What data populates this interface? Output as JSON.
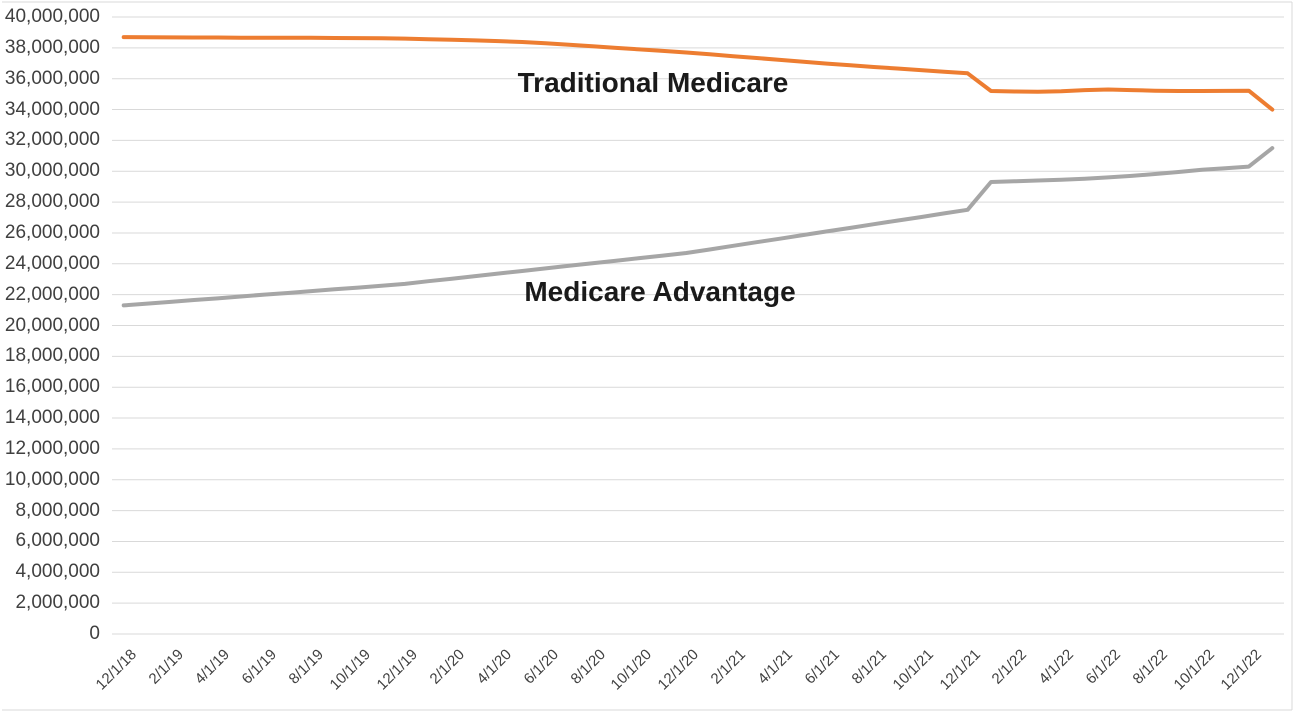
{
  "chart_data": {
    "type": "line",
    "title": "",
    "grid": true,
    "legend_position": "none (inline text labels on plot)",
    "background_color": "#ffffff",
    "gridline_color": "#d9d9d9",
    "axis_label_color": "#404040",
    "ylim": [
      0,
      40000000
    ],
    "y_tick_step": 2000000,
    "y_tick_labels": [
      "40,000,000",
      "38,000,000",
      "36,000,000",
      "34,000,000",
      "32,000,000",
      "30,000,000",
      "28,000,000",
      "26,000,000",
      "24,000,000",
      "22,000,000",
      "20,000,000",
      "18,000,000",
      "16,000,000",
      "14,000,000",
      "12,000,000",
      "10,000,000",
      "8,000,000",
      "6,000,000",
      "4,000,000",
      "2,000,000",
      "0"
    ],
    "x_tick_labels": [
      "12/1/18",
      "2/1/19",
      "4/1/19",
      "6/1/19",
      "8/1/19",
      "10/1/19",
      "12/1/19",
      "2/1/20",
      "4/1/20",
      "6/1/20",
      "8/1/20",
      "10/1/20",
      "12/1/20",
      "2/1/21",
      "4/1/21",
      "6/1/21",
      "8/1/21",
      "10/1/21",
      "12/1/21",
      "2/1/22",
      "4/1/22",
      "6/1/22",
      "8/1/22",
      "10/1/22",
      "12/1/22"
    ],
    "x": [
      "12/1/18",
      "1/1/19",
      "2/1/19",
      "3/1/19",
      "4/1/19",
      "5/1/19",
      "6/1/19",
      "7/1/19",
      "8/1/19",
      "9/1/19",
      "10/1/19",
      "11/1/19",
      "12/1/19",
      "1/1/20",
      "2/1/20",
      "3/1/20",
      "4/1/20",
      "5/1/20",
      "6/1/20",
      "7/1/20",
      "8/1/20",
      "9/1/20",
      "10/1/20",
      "11/1/20",
      "12/1/20",
      "1/1/21",
      "2/1/21",
      "3/1/21",
      "4/1/21",
      "5/1/21",
      "6/1/21",
      "7/1/21",
      "8/1/21",
      "9/1/21",
      "10/1/21",
      "11/1/21",
      "12/1/21",
      "1/1/22",
      "2/1/22",
      "3/1/22",
      "4/1/22",
      "5/1/22",
      "6/1/22",
      "7/1/22",
      "8/1/22",
      "9/1/22",
      "10/1/22",
      "11/1/22",
      "12/1/22",
      "1/1/23"
    ],
    "series": [
      {
        "name": "Traditional Medicare",
        "color": "#ED7D31",
        "values": [
          38700000,
          38690000,
          38680000,
          38670000,
          38670000,
          38660000,
          38660000,
          38650000,
          38650000,
          38640000,
          38630000,
          38620000,
          38600000,
          38560000,
          38520000,
          38480000,
          38440000,
          38380000,
          38300000,
          38200000,
          38100000,
          38000000,
          37900000,
          37800000,
          37700000,
          37580000,
          37460000,
          37340000,
          37220000,
          37100000,
          36980000,
          36870000,
          36760000,
          36660000,
          36560000,
          36450000,
          36350000,
          35200000,
          35170000,
          35150000,
          35180000,
          35260000,
          35300000,
          35260000,
          35220000,
          35200000,
          35200000,
          35210000,
          35220000,
          34000000
        ]
      },
      {
        "name": "Medicare Advantage",
        "color": "#A6A6A6",
        "values": [
          21300000,
          21420000,
          21530000,
          21650000,
          21760000,
          21880000,
          22000000,
          22110000,
          22230000,
          22350000,
          22460000,
          22580000,
          22700000,
          22870000,
          23030000,
          23200000,
          23370000,
          23530000,
          23700000,
          23870000,
          24030000,
          24200000,
          24370000,
          24530000,
          24700000,
          24930000,
          25170000,
          25400000,
          25630000,
          25870000,
          26100000,
          26330000,
          26570000,
          26800000,
          27030000,
          27270000,
          27500000,
          29300000,
          29350000,
          29400000,
          29450000,
          29520000,
          29600000,
          29700000,
          29820000,
          29950000,
          30100000,
          30200000,
          30300000,
          31500000
        ]
      }
    ]
  }
}
